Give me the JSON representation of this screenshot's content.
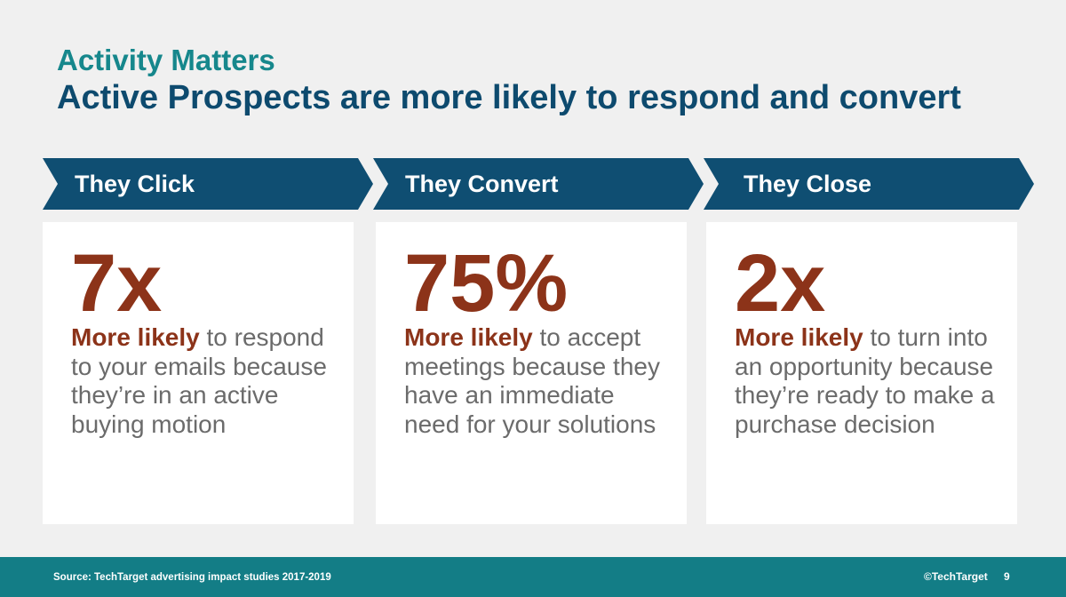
{
  "slide": {
    "subtitle": "Activity Matters",
    "title": "Active Prospects are more likely to respond and convert"
  },
  "columns": [
    {
      "heading": "They Click",
      "stat": "7x",
      "lead": "More likely",
      "rest": " to respond to your emails because they’re in an active buying motion"
    },
    {
      "heading": "They Convert",
      "stat": "75%",
      "lead": "More likely",
      "rest": " to accept meetings because they have an immediate need for your solutions"
    },
    {
      "heading": "They Close",
      "stat": "2x",
      "lead": "More likely",
      "rest": " to turn into an opportunity because they’re ready to make a purchase decision"
    }
  ],
  "footer": {
    "source": "Source: TechTarget advertising impact studies 2017-2019",
    "copyright": "©TechTarget",
    "page": "9"
  },
  "colors": {
    "subtitle": "#16878c",
    "title": "#0d4a6e",
    "chevron": "#0f4e72",
    "stat": "#8c3319",
    "body_text": "#6b6b6b",
    "footer_bar": "#137d86"
  }
}
